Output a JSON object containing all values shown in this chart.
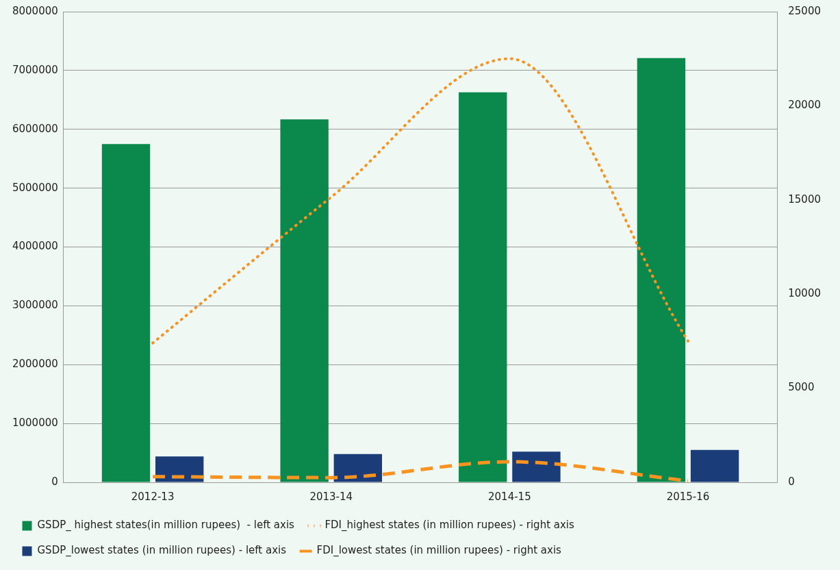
{
  "chart_data": {
    "type": "bar",
    "categories": [
      "2012-13",
      "2013-14",
      "2014-15",
      "2015-16"
    ],
    "series": [
      {
        "name": "GSDP_ highest states(in million rupees)  - left axis",
        "color": "#0b884b",
        "values": [
          5750000,
          6170000,
          6630000,
          7210000
        ]
      },
      {
        "name": "FDI_highest states (in million rupees) - right axis",
        "color": "#f7931e",
        "type": "line",
        "axis": "y2",
        "line_style": "dotted",
        "values": [
          7400,
          15150,
          22500,
          7500
        ]
      },
      {
        "name": "GSDP_lowest states (in million rupees) - left axis",
        "color": "#1a3c78",
        "values": [
          440000,
          480000,
          520000,
          550000
        ]
      },
      {
        "name": "FDI_lowest states (in million rupees) - right axis",
        "color": "#f7931e",
        "type": "line",
        "axis": "y2",
        "line_style": "dashed",
        "values": [
          300,
          250,
          1090,
          80
        ]
      }
    ],
    "ylim": [
      0,
      8000000
    ],
    "yticks": [
      0,
      1000000,
      2000000,
      3000000,
      4000000,
      5000000,
      6000000,
      7000000,
      8000000
    ],
    "y2lim": [
      0,
      25000
    ],
    "y2ticks": [
      0,
      5000,
      10000,
      15000,
      20000,
      25000
    ],
    "grid": "y",
    "legend": "bottom",
    "marker": "none"
  }
}
